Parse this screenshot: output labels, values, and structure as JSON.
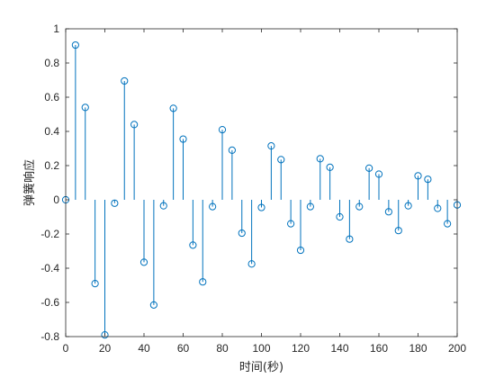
{
  "chart_data": {
    "type": "stem",
    "title": "",
    "xlabel": "时间(秒)",
    "ylabel": "弹簧响应",
    "xlim": [
      0,
      200
    ],
    "ylim": [
      -0.8,
      1
    ],
    "xticks": [
      0,
      20,
      40,
      60,
      80,
      100,
      120,
      140,
      160,
      180,
      200
    ],
    "yticks": [
      -0.8,
      -0.6,
      -0.4,
      -0.2,
      0,
      0.2,
      0.4,
      0.6,
      0.8,
      1
    ],
    "xtick_labels": [
      "0",
      "20",
      "40",
      "60",
      "80",
      "100",
      "120",
      "140",
      "160",
      "180",
      "200"
    ],
    "ytick_labels": [
      "-0.8",
      "-0.6",
      "-0.4",
      "-0.2",
      "0",
      "0.2",
      "0.4",
      "0.6",
      "0.8",
      "1"
    ],
    "grid": false,
    "box": true,
    "color": "#0072bd",
    "series": [
      {
        "x": [
          0,
          5,
          10,
          15,
          20,
          25,
          30,
          35,
          40,
          45,
          50,
          55,
          60,
          65,
          70,
          75,
          80,
          85,
          90,
          95,
          100,
          105,
          110,
          115,
          120,
          125,
          130,
          135,
          140,
          145,
          150,
          155,
          160,
          165,
          170,
          175,
          180,
          185,
          190,
          195,
          200
        ],
        "y": [
          0,
          0.905,
          0.54,
          -0.49,
          -0.79,
          -0.02,
          0.695,
          0.44,
          -0.365,
          -0.615,
          -0.035,
          0.535,
          0.355,
          -0.265,
          -0.48,
          -0.04,
          0.41,
          0.29,
          -0.195,
          -0.375,
          -0.045,
          0.315,
          0.235,
          -0.14,
          -0.295,
          -0.04,
          0.24,
          0.19,
          -0.1,
          -0.23,
          -0.04,
          0.185,
          0.15,
          -0.07,
          -0.18,
          -0.035,
          0.14,
          0.12,
          -0.05,
          -0.14,
          -0.03
        ]
      }
    ]
  }
}
